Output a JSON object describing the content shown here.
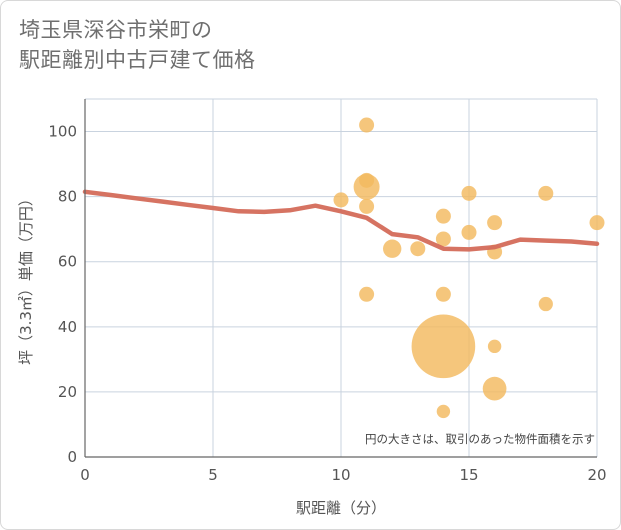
{
  "title_lines": [
    "埼玉県深谷市栄町の",
    "駅距離別中古戸建て価格"
  ],
  "chart_data": {
    "type": "scatter",
    "xlabel": "駅距離（分）",
    "ylabel": "坪（3.3㎡）単価（万円）",
    "xlim": [
      0,
      20
    ],
    "ylim": [
      0,
      110
    ],
    "x_ticks": [
      0,
      5,
      10,
      15,
      20
    ],
    "y_ticks": [
      0,
      20,
      40,
      60,
      80,
      100
    ],
    "grid": true,
    "note": "円の大きさは、取引のあった物件面積を示す",
    "colors": {
      "points": "#f3b95f",
      "line": "#d46b5a",
      "grid": "#c9d3df",
      "axis": "#666666"
    },
    "points": [
      {
        "x": 11,
        "y": 102,
        "size": 1
      },
      {
        "x": 11,
        "y": 85,
        "size": 1
      },
      {
        "x": 11,
        "y": 83,
        "size": 3
      },
      {
        "x": 10,
        "y": 79,
        "size": 1
      },
      {
        "x": 11,
        "y": 77,
        "size": 1
      },
      {
        "x": 11,
        "y": 50,
        "size": 1
      },
      {
        "x": 12,
        "y": 64,
        "size": 1.5
      },
      {
        "x": 13,
        "y": 64,
        "size": 1
      },
      {
        "x": 14,
        "y": 74,
        "size": 1
      },
      {
        "x": 14,
        "y": 67,
        "size": 1
      },
      {
        "x": 14,
        "y": 50,
        "size": 1
      },
      {
        "x": 14,
        "y": 34,
        "size": 18
      },
      {
        "x": 14,
        "y": 14,
        "size": 0.8
      },
      {
        "x": 15,
        "y": 81,
        "size": 1
      },
      {
        "x": 15,
        "y": 69,
        "size": 1
      },
      {
        "x": 16,
        "y": 72,
        "size": 1
      },
      {
        "x": 16,
        "y": 63,
        "size": 1
      },
      {
        "x": 16,
        "y": 34,
        "size": 0.8
      },
      {
        "x": 16,
        "y": 21,
        "size": 2.5
      },
      {
        "x": 18,
        "y": 81,
        "size": 1
      },
      {
        "x": 18,
        "y": 47,
        "size": 0.9
      },
      {
        "x": 20,
        "y": 72,
        "size": 1
      }
    ],
    "trend_line": {
      "x": [
        0,
        1,
        2,
        3,
        4,
        5,
        6,
        7,
        8,
        9,
        10,
        11,
        12,
        13,
        14,
        15,
        16,
        17,
        18,
        19,
        20
      ],
      "y": [
        81.5,
        80.5,
        79.5,
        78.5,
        77.5,
        76.5,
        75.5,
        75.3,
        75.8,
        77.2,
        75.5,
        73.5,
        68.5,
        67.5,
        64,
        63.8,
        64.5,
        66.8,
        66.5,
        66.2,
        65.5
      ]
    }
  }
}
